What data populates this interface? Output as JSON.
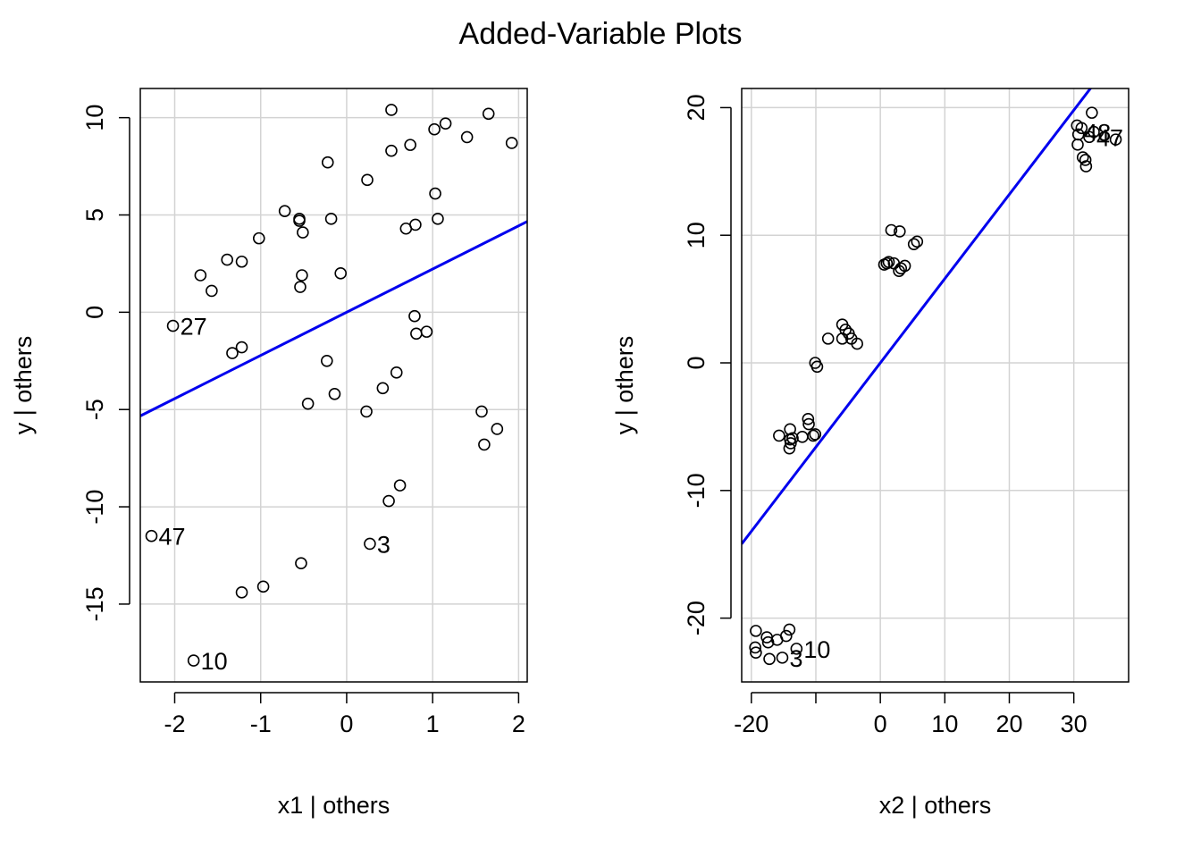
{
  "title": "Added-Variable Plots",
  "chart_data": [
    {
      "type": "scatter",
      "xlabel": "x1 | others",
      "ylabel": "y  | others",
      "xlim": [
        -2.4,
        2.1
      ],
      "ylim": [
        -19,
        11.5
      ],
      "xticks": [
        -2,
        -1,
        0,
        1,
        2
      ],
      "xtick_labels": [
        "-2",
        "-1",
        "0",
        "1",
        "2"
      ],
      "yticks": [
        -15,
        -10,
        -5,
        0,
        5,
        10
      ],
      "ytick_labels": [
        "-15",
        "-10",
        "-5",
        "0",
        "5",
        "10"
      ],
      "grid": true,
      "line_color": "#0000ee",
      "fit_line": {
        "intercept": 0.0,
        "slope": 2.22
      },
      "points": [
        [
          0.52,
          10.4
        ],
        [
          1.65,
          10.2
        ],
        [
          1.15,
          9.7
        ],
        [
          1.02,
          9.4
        ],
        [
          1.4,
          9.0
        ],
        [
          1.92,
          8.7
        ],
        [
          0.74,
          8.6
        ],
        [
          0.52,
          8.3
        ],
        [
          -0.22,
          7.7
        ],
        [
          0.24,
          6.8
        ],
        [
          1.03,
          6.1
        ],
        [
          -0.72,
          5.2
        ],
        [
          -0.55,
          4.8
        ],
        [
          -0.55,
          4.7
        ],
        [
          -0.18,
          4.8
        ],
        [
          1.06,
          4.8
        ],
        [
          0.8,
          4.5
        ],
        [
          0.69,
          4.3
        ],
        [
          -0.51,
          4.1
        ],
        [
          -1.02,
          3.8
        ],
        [
          -1.39,
          2.7
        ],
        [
          -1.22,
          2.6
        ],
        [
          -1.7,
          1.9
        ],
        [
          -0.52,
          1.9
        ],
        [
          -0.07,
          2.0
        ],
        [
          -1.57,
          1.1
        ],
        [
          -0.54,
          1.3
        ],
        [
          -2.02,
          -0.7
        ],
        [
          0.79,
          -0.2
        ],
        [
          0.81,
          -1.1
        ],
        [
          0.93,
          -1.0
        ],
        [
          -1.33,
          -2.1
        ],
        [
          -1.22,
          -1.8
        ],
        [
          -0.23,
          -2.5
        ],
        [
          0.58,
          -3.1
        ],
        [
          0.42,
          -3.9
        ],
        [
          -0.14,
          -4.2
        ],
        [
          -0.45,
          -4.7
        ],
        [
          0.23,
          -5.1
        ],
        [
          1.57,
          -5.1
        ],
        [
          1.75,
          -6.0
        ],
        [
          1.6,
          -6.8
        ],
        [
          0.62,
          -8.9
        ],
        [
          0.49,
          -9.7
        ],
        [
          -2.27,
          -11.5
        ],
        [
          0.27,
          -11.9
        ],
        [
          -0.53,
          -12.9
        ],
        [
          -0.97,
          -14.1
        ],
        [
          -1.22,
          -14.4
        ],
        [
          -1.78,
          -17.9
        ]
      ],
      "labels": [
        {
          "text": "27",
          "x": -2.02,
          "y": -0.7
        },
        {
          "text": "47",
          "x": -2.27,
          "y": -11.5
        },
        {
          "text": "3",
          "x": 0.27,
          "y": -11.9
        },
        {
          "text": "10",
          "x": -1.78,
          "y": -17.9
        }
      ]
    },
    {
      "type": "scatter",
      "xlabel": "x2 | others",
      "ylabel": "y  | others",
      "xlim": [
        -21.5,
        38.5
      ],
      "ylim": [
        -25,
        21.5
      ],
      "xticks": [
        -20,
        -10,
        0,
        10,
        20,
        30
      ],
      "xtick_labels": [
        "-20",
        "",
        "0",
        "10",
        "20",
        "30"
      ],
      "yticks": [
        -20,
        -10,
        0,
        10,
        20
      ],
      "ytick_labels": [
        "-20",
        "-10",
        "0",
        "10",
        "20"
      ],
      "grid": true,
      "line_color": "#0000ee",
      "fit_line": {
        "intercept": 0.0,
        "slope": 0.66
      },
      "points": [
        [
          32.8,
          19.6
        ],
        [
          30.5,
          18.6
        ],
        [
          31.2,
          18.4
        ],
        [
          33.1,
          18.1
        ],
        [
          30.7,
          17.9
        ],
        [
          32.4,
          17.7
        ],
        [
          36.5,
          17.5
        ],
        [
          30.6,
          17.1
        ],
        [
          31.4,
          16.1
        ],
        [
          31.8,
          15.9
        ],
        [
          31.9,
          15.4
        ],
        [
          1.7,
          10.4
        ],
        [
          3.0,
          10.3
        ],
        [
          5.7,
          9.5
        ],
        [
          5.2,
          9.3
        ],
        [
          0.6,
          7.7
        ],
        [
          1.0,
          7.8
        ],
        [
          1.3,
          7.9
        ],
        [
          2.1,
          7.8
        ],
        [
          3.2,
          7.4
        ],
        [
          3.8,
          7.6
        ],
        [
          2.9,
          7.2
        ],
        [
          -5.9,
          3.0
        ],
        [
          -5.4,
          2.6
        ],
        [
          -4.9,
          2.3
        ],
        [
          -4.5,
          1.9
        ],
        [
          -3.6,
          1.5
        ],
        [
          -8.1,
          1.9
        ],
        [
          -5.9,
          1.9
        ],
        [
          -10.1,
          0.0
        ],
        [
          -9.8,
          -0.3
        ],
        [
          -11.2,
          -4.4
        ],
        [
          -11.1,
          -4.8
        ],
        [
          -14.0,
          -5.2
        ],
        [
          -15.7,
          -5.7
        ],
        [
          -13.6,
          -5.9
        ],
        [
          -12.1,
          -5.8
        ],
        [
          -10.4,
          -5.7
        ],
        [
          -10.1,
          -5.6
        ],
        [
          -14.0,
          -6.0
        ],
        [
          -13.9,
          -6.3
        ],
        [
          -14.1,
          -6.7
        ],
        [
          -19.3,
          -21.0
        ],
        [
          -14.1,
          -20.9
        ],
        [
          -17.6,
          -21.5
        ],
        [
          -16.0,
          -21.7
        ],
        [
          -17.4,
          -21.9
        ],
        [
          -19.4,
          -22.3
        ],
        [
          -14.6,
          -21.4
        ],
        [
          -13.0,
          -22.4
        ],
        [
          -19.3,
          -22.7
        ],
        [
          -17.2,
          -23.2
        ],
        [
          -15.2,
          -23.1
        ]
      ],
      "labels": [
        {
          "text": "48",
          "x": 30.5,
          "y": 18.1
        },
        {
          "text": "47",
          "x": 32.4,
          "y": 17.7
        },
        {
          "text": "10",
          "x": -13.0,
          "y": -22.4
        },
        {
          "text": "3",
          "x": -15.2,
          "y": -23.1
        }
      ]
    }
  ]
}
